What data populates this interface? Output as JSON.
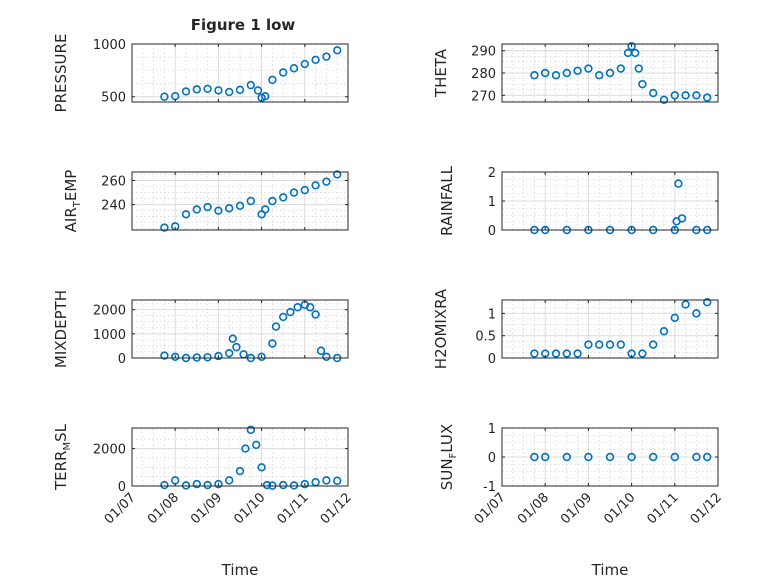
{
  "figure": {
    "title": "Figure 1 low"
  },
  "colors": {
    "series": "#0072bd",
    "axis": "#262626",
    "grid": "#dcdcdc"
  },
  "chart_data": [
    {
      "type": "scatter",
      "id": "pressure",
      "title": "Figure 1 low",
      "ylabel_parts": [
        {
          "text": "PRESSURE"
        }
      ],
      "xlabel": "",
      "show_xticks": false,
      "x_range": [
        "01/07",
        "01/12"
      ],
      "ylim": [
        450,
        1000
      ],
      "yticks": [
        500,
        1000
      ],
      "ytick_labels": [
        "500",
        "1000"
      ],
      "grid": true,
      "marker": "open-circle",
      "x": [
        "01/07 18:00",
        "01/08 00:00",
        "01/08 06:00",
        "01/08 12:00",
        "01/08 18:00",
        "01/09 00:00",
        "01/09 06:00",
        "01/09 12:00",
        "01/09 18:00",
        "01/09 22:00",
        "01/10 00:00",
        "01/10 02:00",
        "01/10 06:00",
        "01/10 12:00",
        "01/10 18:00",
        "01/11 00:00",
        "01/11 06:00",
        "01/11 12:00",
        "01/11 18:00"
      ],
      "y": [
        500,
        505,
        550,
        570,
        575,
        560,
        545,
        565,
        610,
        560,
        490,
        505,
        660,
        730,
        770,
        810,
        850,
        880,
        940
      ]
    },
    {
      "type": "scatter",
      "id": "theta",
      "ylabel_parts": [
        {
          "text": "THETA"
        }
      ],
      "xlabel": "",
      "show_xticks": false,
      "x_range": [
        "01/07",
        "01/12"
      ],
      "ylim": [
        267,
        293
      ],
      "yticks": [
        270,
        280,
        290
      ],
      "ytick_labels": [
        "270",
        "280",
        "290"
      ],
      "grid": true,
      "marker": "open-circle",
      "x": [
        "01/07 18:00",
        "01/08 00:00",
        "01/08 06:00",
        "01/08 12:00",
        "01/08 18:00",
        "01/09 00:00",
        "01/09 06:00",
        "01/09 12:00",
        "01/09 18:00",
        "01/09 22:00",
        "01/10 00:00",
        "01/10 02:00",
        "01/10 04:00",
        "01/10 06:00",
        "01/10 12:00",
        "01/10 18:00",
        "01/11 00:00",
        "01/11 06:00",
        "01/11 12:00",
        "01/11 18:00"
      ],
      "y": [
        279,
        280,
        279,
        280,
        281,
        282,
        279,
        280,
        282,
        289,
        292,
        289,
        282,
        275,
        271,
        268,
        270,
        270,
        270,
        269
      ]
    },
    {
      "type": "scatter",
      "id": "air_temp",
      "ylabel_parts": [
        {
          "text": "AIR"
        },
        {
          "text": "T",
          "sub": true
        },
        {
          "text": "EMP"
        }
      ],
      "xlabel": "",
      "show_xticks": false,
      "x_range": [
        "01/07",
        "01/12"
      ],
      "ylim": [
        219,
        267
      ],
      "yticks": [
        240,
        260
      ],
      "ytick_labels": [
        "240",
        "260"
      ],
      "grid": true,
      "marker": "open-circle",
      "x": [
        "01/07 18:00",
        "01/08 00:00",
        "01/08 06:00",
        "01/08 12:00",
        "01/08 18:00",
        "01/09 00:00",
        "01/09 06:00",
        "01/09 12:00",
        "01/09 18:00",
        "01/10 00:00",
        "01/10 02:00",
        "01/10 06:00",
        "01/10 12:00",
        "01/10 18:00",
        "01/11 00:00",
        "01/11 06:00",
        "01/11 12:00",
        "01/11 18:00"
      ],
      "y": [
        221,
        222,
        232,
        236,
        238,
        235,
        237,
        239,
        243,
        232,
        236,
        243,
        246,
        250,
        252,
        256,
        259,
        265
      ]
    },
    {
      "type": "scatter",
      "id": "rainfall",
      "ylabel_parts": [
        {
          "text": "RAINFALL"
        }
      ],
      "xlabel": "",
      "show_xticks": false,
      "x_range": [
        "01/07",
        "01/12"
      ],
      "ylim": [
        0,
        2
      ],
      "yticks": [
        0,
        1,
        2
      ],
      "ytick_labels": [
        "0",
        "1",
        "2"
      ],
      "grid": true,
      "marker": "open-circle",
      "x": [
        "01/07 18:00",
        "01/08 00:00",
        "01/08 12:00",
        "01/09 00:00",
        "01/09 12:00",
        "01/10 00:00",
        "01/10 12:00",
        "01/11 00:00",
        "01/11 01:00",
        "01/11 02:00",
        "01/11 04:00",
        "01/11 12:00",
        "01/11 18:00"
      ],
      "y": [
        0,
        0,
        0,
        0,
        0,
        0,
        0,
        0,
        0.3,
        1.6,
        0.4,
        0,
        0
      ]
    },
    {
      "type": "scatter",
      "id": "mixdepth",
      "ylabel_parts": [
        {
          "text": "MIXDEPTH"
        }
      ],
      "xlabel": "",
      "show_xticks": false,
      "x_range": [
        "01/07",
        "01/12"
      ],
      "ylim": [
        0,
        2400
      ],
      "yticks": [
        0,
        1000,
        2000
      ],
      "ytick_labels": [
        "0",
        "1000",
        "2000"
      ],
      "grid": true,
      "marker": "open-circle",
      "x": [
        "01/07 18:00",
        "01/08 00:00",
        "01/08 06:00",
        "01/08 12:00",
        "01/08 18:00",
        "01/09 00:00",
        "01/09 06:00",
        "01/09 08:00",
        "01/09 10:00",
        "01/09 14:00",
        "01/09 18:00",
        "01/10 00:00",
        "01/10 06:00",
        "01/10 08:00",
        "01/10 12:00",
        "01/10 16:00",
        "01/10 20:00",
        "01/11 00:00",
        "01/11 03:00",
        "01/11 06:00",
        "01/11 09:00",
        "01/11 12:00",
        "01/11 18:00"
      ],
      "y": [
        100,
        50,
        0,
        20,
        30,
        80,
        200,
        800,
        450,
        150,
        0,
        50,
        600,
        1300,
        1700,
        1900,
        2100,
        2200,
        2100,
        1800,
        300,
        50,
        0
      ]
    },
    {
      "type": "scatter",
      "id": "h2omixra",
      "ylabel_parts": [
        {
          "text": "H2OMIXRA"
        }
      ],
      "xlabel": "",
      "show_xticks": false,
      "x_range": [
        "01/07",
        "01/12"
      ],
      "ylim": [
        0,
        1.3
      ],
      "yticks": [
        0,
        0.5,
        1
      ],
      "ytick_labels": [
        "0",
        "0.5",
        "1"
      ],
      "grid": true,
      "marker": "open-circle",
      "x": [
        "01/07 18:00",
        "01/08 00:00",
        "01/08 06:00",
        "01/08 12:00",
        "01/08 18:00",
        "01/09 00:00",
        "01/09 06:00",
        "01/09 12:00",
        "01/09 18:00",
        "01/10 00:00",
        "01/10 06:00",
        "01/10 12:00",
        "01/10 18:00",
        "01/11 00:00",
        "01/11 06:00",
        "01/11 12:00",
        "01/11 18:00"
      ],
      "y": [
        0.1,
        0.1,
        0.1,
        0.1,
        0.1,
        0.3,
        0.3,
        0.3,
        0.3,
        0.1,
        0.1,
        0.3,
        0.6,
        0.9,
        1.2,
        1.0,
        1.25
      ]
    },
    {
      "type": "scatter",
      "id": "terr_msl",
      "ylabel_parts": [
        {
          "text": "TERR"
        },
        {
          "text": "M",
          "sub": true
        },
        {
          "text": "SL"
        }
      ],
      "xlabel": "Time",
      "show_xticks": true,
      "x_range": [
        "01/07",
        "01/12"
      ],
      "ylim": [
        0,
        3100
      ],
      "yticks": [
        0,
        2000
      ],
      "ytick_labels": [
        "0",
        "2000"
      ],
      "xticks": [
        "01/07",
        "01/08",
        "01/09",
        "01/10",
        "01/11",
        "01/12"
      ],
      "grid": true,
      "marker": "open-circle",
      "x": [
        "01/07 18:00",
        "01/08 00:00",
        "01/08 06:00",
        "01/08 12:00",
        "01/08 18:00",
        "01/09 00:00",
        "01/09 06:00",
        "01/09 12:00",
        "01/09 15:00",
        "01/09 18:00",
        "01/09 21:00",
        "01/10 00:00",
        "01/10 03:00",
        "01/10 06:00",
        "01/10 12:00",
        "01/10 18:00",
        "01/11 00:00",
        "01/11 06:00",
        "01/11 12:00",
        "01/11 18:00"
      ],
      "y": [
        50,
        300,
        30,
        100,
        50,
        100,
        300,
        800,
        2000,
        3000,
        2200,
        1000,
        50,
        20,
        50,
        30,
        100,
        200,
        300,
        280
      ]
    },
    {
      "type": "scatter",
      "id": "sun_flux",
      "ylabel_parts": [
        {
          "text": "SUN"
        },
        {
          "text": "F",
          "sub": true
        },
        {
          "text": "LUX"
        }
      ],
      "xlabel": "Time",
      "show_xticks": true,
      "x_range": [
        "01/07",
        "01/12"
      ],
      "ylim": [
        -1,
        1
      ],
      "yticks": [
        -1,
        0,
        1
      ],
      "ytick_labels": [
        "-1",
        "0",
        "1"
      ],
      "xticks": [
        "01/07",
        "01/08",
        "01/09",
        "01/10",
        "01/11",
        "01/12"
      ],
      "grid": true,
      "marker": "open-circle",
      "x": [
        "01/07 18:00",
        "01/08 00:00",
        "01/08 12:00",
        "01/09 00:00",
        "01/09 12:00",
        "01/10 00:00",
        "01/10 12:00",
        "01/11 00:00",
        "01/11 12:00",
        "01/11 18:00"
      ],
      "y": [
        0,
        0,
        0,
        0,
        0,
        0,
        0,
        0,
        0,
        0
      ]
    }
  ]
}
